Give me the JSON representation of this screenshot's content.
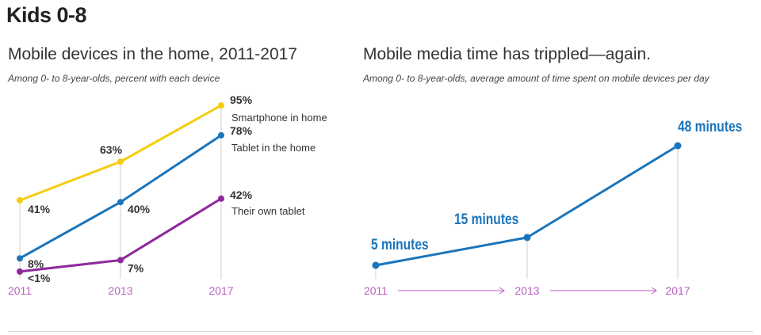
{
  "page_title": "Kids 0-8",
  "chart_data": [
    {
      "type": "line",
      "title": "Mobile devices in the home, 2011-2017",
      "subtitle": "Among 0- to 8-year-olds, percent with each device",
      "x": [
        "2011",
        "2013",
        "2017"
      ],
      "x_numeric": [
        2011,
        2013,
        2017
      ],
      "ylim": [
        0,
        100
      ],
      "grid": false,
      "series": [
        {
          "name": "Smartphone in home",
          "values": [
            41,
            63,
            95
          ],
          "labels": [
            "41%",
            "63%",
            "95%"
          ],
          "color": "#f5cd0f"
        },
        {
          "name": "Tablet in the home",
          "values": [
            8,
            40,
            78
          ],
          "labels": [
            "8%",
            "40%",
            "78%"
          ],
          "color": "#1a75bc"
        },
        {
          "name": "Their own tablet",
          "values": [
            0.5,
            7,
            42
          ],
          "labels": [
            "<1%",
            "7%",
            "42%"
          ],
          "color": "#8e2a9b"
        }
      ],
      "x_color": "#b95fc2"
    },
    {
      "type": "line",
      "title": "Mobile media time has trippled—again.",
      "subtitle": "Among 0- to 8-year-olds, average amount of time spent on mobile devices per day",
      "x": [
        "2011",
        "2013",
        "2017"
      ],
      "x_numeric": [
        2011,
        2013,
        2017
      ],
      "ylim": [
        0,
        60
      ],
      "grid": false,
      "series": [
        {
          "values": [
            5,
            15,
            48
          ],
          "labels": [
            "5 minutes",
            "15 minutes",
            "48 minutes"
          ],
          "color": "#1a75bc"
        }
      ],
      "x_color": "#b95fc2"
    }
  ]
}
